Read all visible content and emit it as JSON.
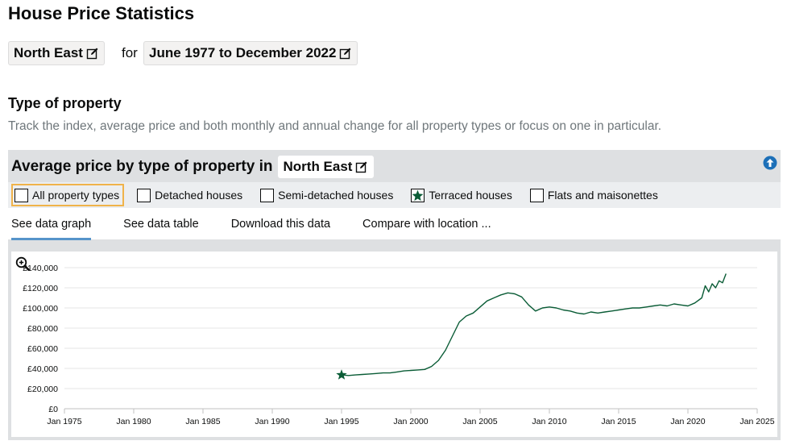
{
  "page": {
    "title": "House Price Statistics"
  },
  "location_selector": {
    "label": "North East"
  },
  "for_word": "for",
  "period_selector": {
    "label": "June 1977 to December 2022"
  },
  "type_section": {
    "title": "Type of property",
    "description": "Track the index, average price and both monthly and annual change for all property types or focus on one in particular."
  },
  "panel": {
    "title": "Average price by type of property in",
    "location_label": "North East",
    "filters": [
      {
        "label": "All property types",
        "checked": false
      },
      {
        "label": "Detached houses",
        "checked": false
      },
      {
        "label": "Semi-detached houses",
        "checked": false
      },
      {
        "label": "Terraced houses",
        "checked": true
      },
      {
        "label": "Flats and maisonettes",
        "checked": false
      }
    ],
    "tabs": [
      {
        "label": "See data graph",
        "active": true
      },
      {
        "label": "See data table",
        "active": false
      },
      {
        "label": "Download this data",
        "active": false
      },
      {
        "label": "Compare with location ...",
        "active": false
      }
    ]
  },
  "colors": {
    "series": "#0a5c36",
    "tab_active": "#5694ca",
    "focus": "#f0b34a"
  },
  "icons": {
    "edit": "edit-icon",
    "up": "arrow-up-circle-icon",
    "zoom": "zoom-in-icon",
    "marker": "star-icon"
  },
  "chart_data": {
    "type": "line",
    "series": [
      {
        "name": "Terraced houses",
        "x": [
          1995.0,
          1995.5,
          1996.0,
          1996.5,
          1997.0,
          1997.5,
          1998.0,
          1998.5,
          1999.0,
          1999.5,
          2000.0,
          2000.5,
          2001.0,
          2001.5,
          2002.0,
          2002.5,
          2003.0,
          2003.5,
          2004.0,
          2004.5,
          2005.0,
          2005.5,
          2006.0,
          2006.5,
          2007.0,
          2007.5,
          2008.0,
          2008.5,
          2009.0,
          2009.5,
          2010.0,
          2010.5,
          2011.0,
          2011.5,
          2012.0,
          2012.5,
          2013.0,
          2013.5,
          2014.0,
          2014.5,
          2015.0,
          2015.5,
          2016.0,
          2016.5,
          2017.0,
          2017.5,
          2018.0,
          2018.5,
          2019.0,
          2019.5,
          2020.0,
          2020.5,
          2021.0,
          2021.25,
          2021.5,
          2021.75,
          2022.0,
          2022.25,
          2022.5,
          2022.75
        ],
        "values": [
          33500,
          33000,
          33500,
          34000,
          34500,
          35000,
          35500,
          35500,
          36500,
          37500,
          38000,
          38500,
          39000,
          42000,
          48000,
          58000,
          72000,
          86000,
          92000,
          95000,
          101000,
          107000,
          110000,
          113000,
          115000,
          114000,
          111000,
          103000,
          97000,
          100000,
          101000,
          100000,
          98000,
          97000,
          95000,
          94000,
          96000,
          95000,
          96000,
          97000,
          98000,
          99000,
          100000,
          100000,
          101000,
          102000,
          103000,
          102000,
          104000,
          103000,
          102000,
          105000,
          110000,
          122000,
          116000,
          124000,
          120000,
          127000,
          125000,
          134000
        ]
      }
    ],
    "x_ticks": [
      "Jan 1975",
      "Jan 1980",
      "Jan 1985",
      "Jan 1990",
      "Jan 1995",
      "Jan 2000",
      "Jan 2005",
      "Jan 2010",
      "Jan 2015",
      "Jan 2020",
      "Jan 2025"
    ],
    "y_ticks": [
      "£0",
      "£20,000",
      "£40,000",
      "£60,000",
      "£80,000",
      "£100,000",
      "£120,000",
      "£140,000"
    ],
    "xlim": [
      1975,
      2025
    ],
    "ylim": [
      0,
      140000
    ],
    "grid": true,
    "legend": "none"
  }
}
